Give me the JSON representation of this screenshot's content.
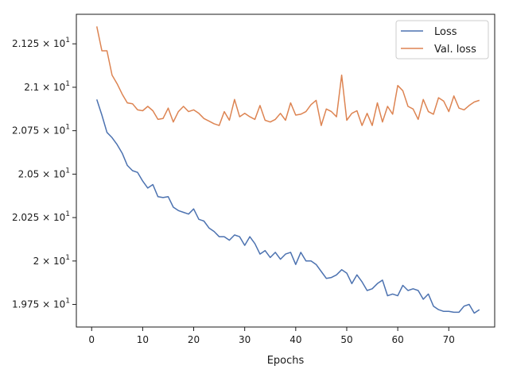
{
  "chart_data": {
    "type": "line",
    "title": "",
    "xlabel": "Epochs",
    "ylabel": "",
    "xlim": [
      -3,
      79
    ],
    "ylim": [
      19.62,
      21.42
    ],
    "grid": false,
    "legend_placement": "top-right",
    "x_ticks": [
      0,
      10,
      20,
      30,
      40,
      50,
      60,
      70
    ],
    "y_ticks": [
      {
        "value": 19.75,
        "mantissa": "1.975"
      },
      {
        "value": 20.0,
        "mantissa": "2"
      },
      {
        "value": 20.25,
        "mantissa": "2.025"
      },
      {
        "value": 20.5,
        "mantissa": "2.05"
      },
      {
        "value": 20.75,
        "mantissa": "2.075"
      },
      {
        "value": 21.0,
        "mantissa": "2.1"
      },
      {
        "value": 21.25,
        "mantissa": "2.125"
      }
    ],
    "y_tick_times": "× 10",
    "y_tick_exponent": "1",
    "series": [
      {
        "name": "Loss",
        "color": "#4c72b0",
        "x": [
          1,
          2,
          3,
          4,
          5,
          6,
          7,
          8,
          9,
          10,
          11,
          12,
          13,
          14,
          15,
          16,
          17,
          18,
          19,
          20,
          21,
          22,
          23,
          24,
          25,
          26,
          27,
          28,
          29,
          30,
          31,
          32,
          33,
          34,
          35,
          36,
          37,
          38,
          39,
          40,
          41,
          42,
          43,
          44,
          45,
          46,
          47,
          48,
          49,
          50,
          51,
          52,
          53,
          54,
          55,
          56,
          57,
          58,
          59,
          60,
          61,
          62,
          63,
          64,
          65,
          66,
          67,
          68,
          69,
          70,
          71,
          72,
          73,
          74,
          75,
          76
        ],
        "values": [
          20.93,
          20.84,
          20.74,
          20.71,
          20.67,
          20.62,
          20.55,
          20.52,
          20.51,
          20.46,
          20.42,
          20.44,
          20.37,
          20.365,
          20.37,
          20.31,
          20.29,
          20.28,
          20.27,
          20.3,
          20.24,
          20.23,
          20.19,
          20.17,
          20.14,
          20.14,
          20.12,
          20.15,
          20.14,
          20.09,
          20.14,
          20.1,
          20.04,
          20.06,
          20.02,
          20.05,
          20.01,
          20.04,
          20.05,
          19.98,
          20.05,
          20.0,
          20.0,
          19.98,
          19.94,
          19.9,
          19.905,
          19.92,
          19.95,
          19.93,
          19.87,
          19.92,
          19.88,
          19.83,
          19.84,
          19.87,
          19.89,
          19.8,
          19.81,
          19.8,
          19.86,
          19.83,
          19.84,
          19.83,
          19.78,
          19.81,
          19.74,
          19.72,
          19.71,
          19.71,
          19.705,
          19.705,
          19.74,
          19.75,
          19.7,
          19.72
        ]
      },
      {
        "name": "Val. loss",
        "color": "#dd8452",
        "x": [
          1,
          2,
          3,
          4,
          5,
          6,
          7,
          8,
          9,
          10,
          11,
          12,
          13,
          14,
          15,
          16,
          17,
          18,
          19,
          20,
          21,
          22,
          23,
          24,
          25,
          26,
          27,
          28,
          29,
          30,
          31,
          32,
          33,
          34,
          35,
          36,
          37,
          38,
          39,
          40,
          41,
          42,
          43,
          44,
          45,
          46,
          47,
          48,
          49,
          50,
          51,
          52,
          53,
          54,
          55,
          56,
          57,
          58,
          59,
          60,
          61,
          62,
          63,
          64,
          65,
          66,
          67,
          68,
          69,
          70,
          71,
          72,
          73,
          74,
          75,
          76
        ],
        "values": [
          21.35,
          21.21,
          21.21,
          21.07,
          21.02,
          20.96,
          20.91,
          20.905,
          20.87,
          20.865,
          20.89,
          20.865,
          20.815,
          20.82,
          20.88,
          20.8,
          20.86,
          20.89,
          20.86,
          20.87,
          20.85,
          20.82,
          20.805,
          20.79,
          20.78,
          20.86,
          20.81,
          20.93,
          20.83,
          20.85,
          20.83,
          20.815,
          20.895,
          20.81,
          20.8,
          20.815,
          20.85,
          20.81,
          20.91,
          20.84,
          20.845,
          20.86,
          20.9,
          20.925,
          20.78,
          20.875,
          20.86,
          20.83,
          21.07,
          20.81,
          20.85,
          20.865,
          20.78,
          20.85,
          20.78,
          20.91,
          20.8,
          20.89,
          20.845,
          21.01,
          20.98,
          20.89,
          20.875,
          20.815,
          20.93,
          20.86,
          20.845,
          20.94,
          20.92,
          20.86,
          20.95,
          20.88,
          20.87,
          20.895,
          20.915,
          20.925
        ]
      }
    ]
  }
}
